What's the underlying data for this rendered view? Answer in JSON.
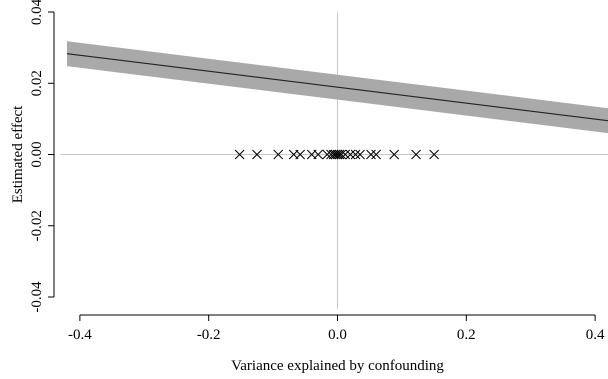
{
  "chart_data": {
    "type": "line",
    "title": "",
    "xlabel": "Variance explained by confounding",
    "ylabel": "Estimated effect",
    "xlim": [
      -0.42,
      0.42
    ],
    "ylim": [
      -0.04,
      0.04
    ],
    "x_ticks": [
      -0.4,
      -0.2,
      0.0,
      0.2,
      0.4
    ],
    "x_tick_labels": [
      "-0.4",
      "-0.2",
      "0.0",
      "0.2",
      "0.4"
    ],
    "y_ticks": [
      -0.04,
      -0.02,
      0.0,
      0.02,
      0.04
    ],
    "y_tick_labels": [
      "-0.04",
      "-0.02",
      "0.00",
      "0.02",
      "0.04"
    ],
    "reference_lines": {
      "x": 0.0,
      "y": 0.0,
      "color": "#c8c8c8"
    },
    "series": [
      {
        "type": "line-with-band",
        "x": [
          -0.42,
          0.42
        ],
        "y": [
          0.0283,
          0.0095
        ],
        "lower": [
          0.0248,
          0.006
        ],
        "upper": [
          0.0318,
          0.013
        ],
        "line_color": "#222222",
        "band_color": "#a9a9a9"
      },
      {
        "type": "scatter",
        "marker": "x",
        "y": 0.0,
        "x": [
          -0.152,
          -0.125,
          -0.092,
          -0.068,
          -0.058,
          -0.04,
          -0.03,
          -0.016,
          -0.01,
          -0.006,
          -0.003,
          0.0,
          0.003,
          0.006,
          0.012,
          0.02,
          0.028,
          0.035,
          0.052,
          0.06,
          0.088,
          0.122,
          0.15
        ]
      }
    ]
  }
}
